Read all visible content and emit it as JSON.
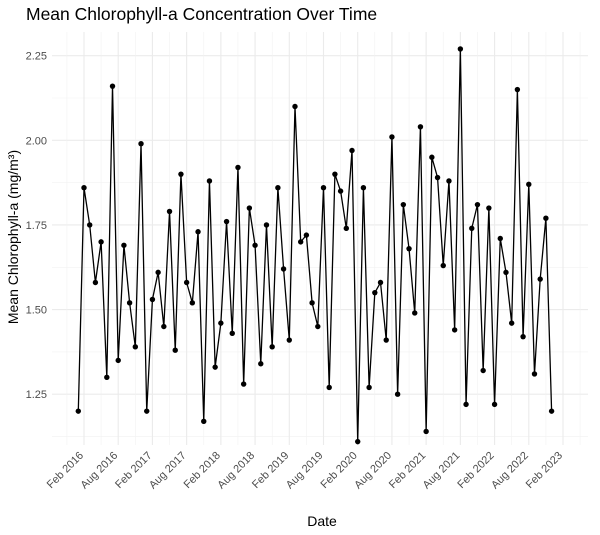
{
  "chart_data": {
    "type": "line",
    "title": "Mean Chlorophyll-a Concentration Over Time",
    "xlabel": "Date",
    "ylabel": "Mean Chlorophyll-a (mg/m³)",
    "x_tick_labels": [
      "Feb 2016",
      "Aug 2016",
      "Feb 2017",
      "Aug 2017",
      "Feb 2018",
      "Aug 2018",
      "Feb 2019",
      "Aug 2019",
      "Feb 2020",
      "Aug 2020",
      "Feb 2021",
      "Aug 2021",
      "Feb 2022",
      "Aug 2022",
      "Feb 2023"
    ],
    "y_tick_labels": [
      "1.25",
      "1.50",
      "1.75",
      "2.00",
      "2.25"
    ],
    "ylim": [
      1.1,
      2.32
    ],
    "grid": true,
    "line_color": "#000000",
    "point_color": "#000000",
    "series": [
      {
        "x": [
          "2016-01",
          "2016-02",
          "2016-03",
          "2016-04",
          "2016-05",
          "2016-06",
          "2016-07",
          "2016-08",
          "2016-09",
          "2016-10",
          "2016-11",
          "2016-12",
          "2017-01",
          "2017-02",
          "2017-03",
          "2017-04",
          "2017-05",
          "2017-06",
          "2017-07",
          "2017-08",
          "2017-09",
          "2017-10",
          "2017-11",
          "2017-12",
          "2018-01",
          "2018-02",
          "2018-03",
          "2018-04",
          "2018-05",
          "2018-06",
          "2018-07",
          "2018-08",
          "2018-09",
          "2018-10",
          "2018-11",
          "2018-12",
          "2019-01",
          "2019-02",
          "2019-03",
          "2019-04",
          "2019-05",
          "2019-06",
          "2019-07",
          "2019-08",
          "2019-09",
          "2019-10",
          "2019-11",
          "2019-12",
          "2020-01",
          "2020-02",
          "2020-03",
          "2020-04",
          "2020-05",
          "2020-06",
          "2020-07",
          "2020-08",
          "2020-09",
          "2020-10",
          "2020-11",
          "2020-12",
          "2021-01",
          "2021-02",
          "2021-03",
          "2021-04",
          "2021-05",
          "2021-06",
          "2021-07",
          "2021-08",
          "2021-09",
          "2021-10",
          "2021-11",
          "2021-12",
          "2022-01",
          "2022-02",
          "2022-03",
          "2022-04",
          "2022-05",
          "2022-06",
          "2022-07",
          "2022-08",
          "2022-09",
          "2022-10",
          "2022-11",
          "2022-12"
        ],
        "y": [
          1.2,
          1.86,
          1.75,
          1.58,
          1.7,
          1.3,
          2.16,
          1.35,
          1.69,
          1.52,
          1.39,
          1.99,
          1.2,
          1.53,
          1.61,
          1.45,
          1.79,
          1.38,
          1.9,
          1.58,
          1.52,
          1.73,
          1.17,
          1.88,
          1.33,
          1.46,
          1.76,
          1.43,
          1.92,
          1.28,
          1.8,
          1.69,
          1.34,
          1.75,
          1.39,
          1.86,
          1.62,
          1.41,
          2.1,
          1.7,
          1.72,
          1.52,
          1.45,
          1.86,
          1.27,
          1.9,
          1.85,
          1.74,
          1.97,
          1.11,
          1.86,
          1.27,
          1.55,
          1.58,
          1.41,
          2.01,
          1.25,
          1.81,
          1.68,
          1.49,
          2.04,
          1.14,
          1.95,
          1.89,
          1.63,
          1.88,
          1.44,
          2.27,
          1.22,
          1.74,
          1.81,
          1.32,
          1.8,
          1.22,
          1.71,
          1.61,
          1.46,
          2.15,
          1.42,
          1.87,
          1.31,
          1.59,
          1.77,
          1.2
        ]
      }
    ]
  }
}
